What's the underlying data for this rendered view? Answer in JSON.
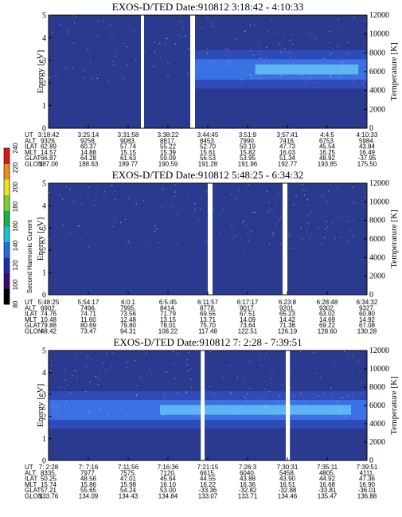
{
  "colors": {
    "background": "#2a3a8f",
    "band_low": "#2f4fc0",
    "band_mid": "#3d77e8",
    "band_high": "#62bdf2",
    "gap": "#ffffff"
  },
  "colorbar": {
    "label": "Second Harmonic Current",
    "ticks": [
      "80",
      "100",
      "120",
      "140",
      "160",
      "180",
      "200",
      "220",
      "240"
    ],
    "colors": [
      "#000000",
      "#3b0a6b",
      "#1b2fa8",
      "#1d6ee0",
      "#17c2d6",
      "#13b34a",
      "#7cd22a",
      "#f2e11e",
      "#f08a1a",
      "#e01515"
    ]
  },
  "chart_data": [
    {
      "type": "heatmap",
      "title": "EXOS-D/TED   Date:910812  3:18:42 - 4:10:33",
      "ylabel": "Energy [eV]",
      "y2label": "Temperature [K]",
      "ylim": [
        0,
        5
      ],
      "yticks": [
        "0",
        "1",
        "2",
        "3",
        "4",
        "5"
      ],
      "y2lim": [
        0,
        12000
      ],
      "y2ticks": [
        "0",
        "2000",
        "4000",
        "6000",
        "8000",
        "10000",
        "12000"
      ],
      "gaps": [
        [
          0.29,
          0.3
        ],
        [
          0.445,
          0.46
        ]
      ],
      "band": {
        "start": 0.46,
        "peak_center_ev": 2.6,
        "peak_width_ev": 1.0
      },
      "table": {
        "rows": [
          {
            "name": "UT",
            "values": [
              "3:18:42",
              "3:25:14",
              "3:31:58",
              "3:38:22",
              "3:44:45",
              "3:51:9",
              "3:57:41",
              "4:4:5",
              "4:10:33"
            ]
          },
          {
            "name": "ALT",
            "values": [
              "9326.",
              "9258.",
              "9083.",
              "8817.",
              "8453.",
              "7990.",
              "7416.",
              "6753.",
              "5984."
            ]
          },
          {
            "name": "ILAT",
            "values": [
              "62.89",
              "60.37",
              "57.74",
              "55.22",
              "52.70",
              "50.19",
              "47.73",
              "45.54",
              "43.84"
            ]
          },
          {
            "name": "MLT",
            "values": [
              "14.57",
              "14.88",
              "15.15",
              "15.39",
              "15.61",
              "15.82",
              "16.03",
              "16.25",
              "16.49"
            ]
          },
          {
            "name": "GLAT",
            "values": [
              "66.87",
              "64.28",
              "61.63",
              "59.09",
              "56.53",
              "53.95",
              "51.34",
              "48.92",
              "-37.95"
            ]
          },
          {
            "name": "GLON",
            "values": [
              "187.06",
              "188.63",
              "189.77",
              "190.59",
              "191.28",
              "191.96",
              "192.77",
              "193.85",
              "175.50"
            ]
          }
        ]
      }
    },
    {
      "type": "heatmap",
      "title": "EXOS-D/TED   Date:910812  5:48:25 - 6:34:32",
      "ylabel": "Energy [eV]",
      "y2label": "Temperature [K]",
      "ylim": [
        0,
        5
      ],
      "yticks": [
        "0",
        "1",
        "2",
        "3",
        "4",
        "5"
      ],
      "y2lim": [
        0,
        12000
      ],
      "y2ticks": [
        "0",
        "2000",
        "4000",
        "6000",
        "8000",
        "10000",
        "12000"
      ],
      "gaps": [
        [
          0.5,
          0.515
        ],
        [
          0.735,
          0.75
        ]
      ],
      "band": null,
      "table": {
        "rows": [
          {
            "name": "UT",
            "values": [
              "5:48:25",
              "5:54:17",
              "6:0:1",
              "6:5:45",
              "6:11:57",
              "6:17:17",
              "6:23:8",
              "6:28:48",
              "6:34:32"
            ]
          },
          {
            "name": "ALT",
            "values": [
              "6902.",
              "7496.",
              "7995.",
              "8414.",
              "8778.",
              "9017.",
              "9201.",
              "9302.",
              "9327."
            ]
          },
          {
            "name": "ILAT",
            "values": [
              "74.76",
              "74.71",
              "73.56",
              "71.79",
              "69.55",
              "67.51",
              "65.23",
              "63.02",
              "60.80"
            ]
          },
          {
            "name": "MLT",
            "values": [
              "10.48",
              "11.60",
              "12.48",
              "13.15",
              "13.71",
              "14.09",
              "14.42",
              "14.69",
              "14.92"
            ]
          },
          {
            "name": "GLAT",
            "values": [
              "79.88",
              "80.69",
              "79.80",
              "78.01",
              "75.70",
              "73.64",
              "71.38",
              "69.22",
              "67.08"
            ]
          },
          {
            "name": "GLON",
            "values": [
              "48.42",
              "73.47",
              "94.31",
              "108.22",
              "117.48",
              "122.51",
              "126.19",
              "128.60",
              "130.28"
            ]
          }
        ]
      }
    },
    {
      "type": "heatmap",
      "title": "EXOS-D/TED   Date:910812  7: 2:28 - 7:39:51",
      "ylabel": "Energy [eV]",
      "y2label": "Temperature [K]",
      "ylim": [
        0,
        5
      ],
      "yticks": [
        "0",
        "1",
        "2",
        "3",
        "4",
        "5"
      ],
      "y2lim": [
        0,
        12000
      ],
      "y2ticks": [
        "0",
        "2000",
        "4000",
        "6000",
        "8000",
        "10000",
        "12000"
      ],
      "gaps": [
        [
          0.478,
          0.49
        ],
        [
          0.745,
          0.758
        ]
      ],
      "band": {
        "start": 0.0,
        "peak_center_ev": 2.3,
        "peak_width_ev": 1.0
      },
      "table": {
        "rows": [
          {
            "name": "UT",
            "values": [
              "7: 2:28",
              "7: 7:16",
              "7:11:56",
              "7:16:36",
              "7:21:15",
              "7:26:3",
              "7:30:31",
              "7:35:11",
              "7:39:51"
            ]
          },
          {
            "name": "ALT",
            "values": [
              "8335.",
              "7977.",
              "7575.",
              "7120.",
              "6615.",
              "6040.",
              "5458.",
              "4805.",
              "4111."
            ]
          },
          {
            "name": "ILAT",
            "values": [
              "50.25",
              "48.56",
              "47.01",
              "45.64",
              "44.55",
              "43.88",
              "43.90",
              "44.92",
              "47.36"
            ]
          },
          {
            "name": "MLT",
            "values": [
              "15.74",
              "15.86",
              "15.98",
              "16.10",
              "16.22",
              "16.36",
              "16.51",
              "16.68",
              "16.90"
            ]
          },
          {
            "name": "GLAT",
            "values": [
              "57.21",
              "55.65",
              "54.24",
              "53.00",
              "-33.36",
              "-32.82",
              "-32.88",
              "-33.81",
              "-36.01"
            ]
          },
          {
            "name": "GLON",
            "values": [
              "133.76",
              "134.09",
              "134.43",
              "134.84",
              "133.07",
              "133.71",
              "134.46",
              "135.47",
              "136.88"
            ]
          }
        ]
      }
    }
  ]
}
